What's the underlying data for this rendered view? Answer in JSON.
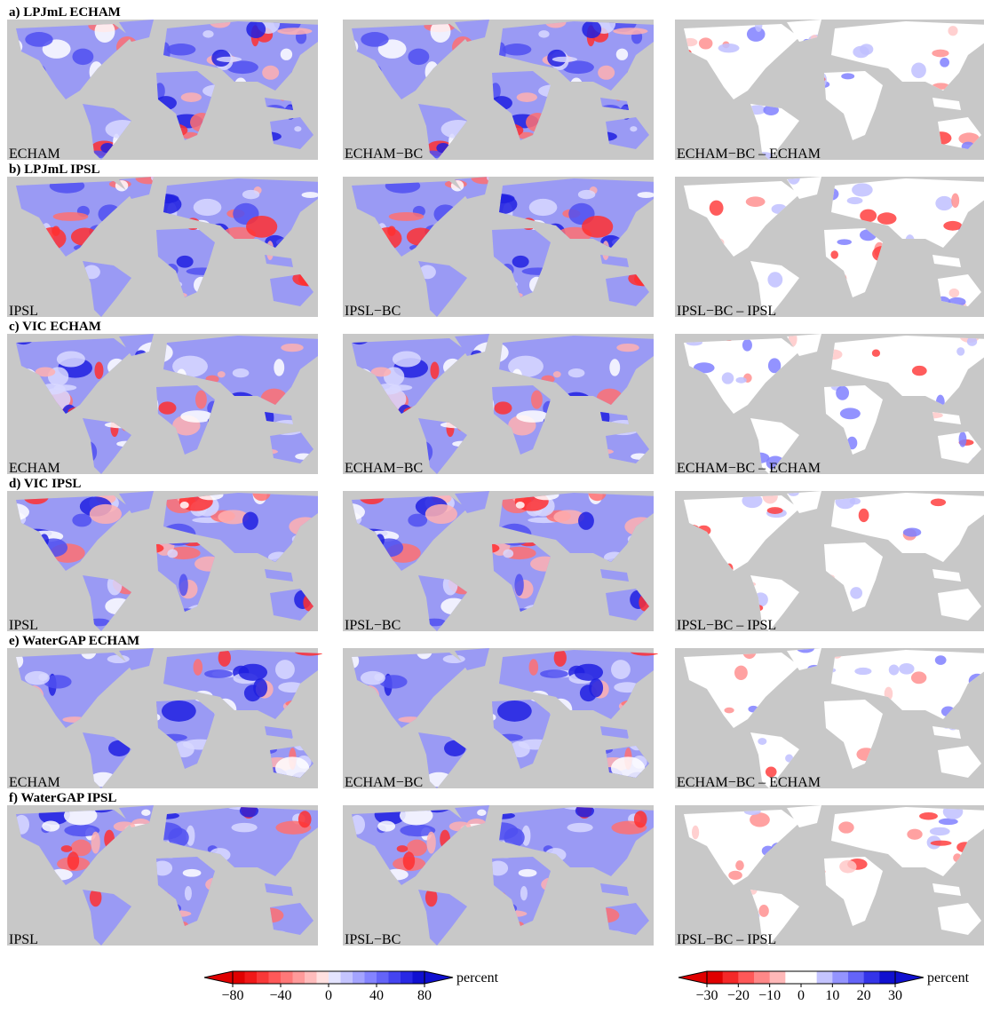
{
  "panels": [
    {
      "title": "a) LPJmL ECHAM",
      "labels": [
        "ECHAM",
        "ECHAM−BC",
        "ECHAM−BC – ECHAM"
      ]
    },
    {
      "title": "b) LPJmL IPSL",
      "labels": [
        "IPSL",
        "IPSL−BC",
        "IPSL−BC – IPSL"
      ]
    },
    {
      "title": "c) VIC ECHAM",
      "labels": [
        "ECHAM",
        "ECHAM−BC",
        "ECHAM−BC – ECHAM"
      ]
    },
    {
      "title": "d) VIC IPSL",
      "labels": [
        "IPSL",
        "IPSL−BC",
        "IPSL−BC – IPSL"
      ]
    },
    {
      "title": "e) WaterGAP ECHAM",
      "labels": [
        "ECHAM",
        "ECHAM−BC",
        "ECHAM−BC – ECHAM"
      ]
    },
    {
      "title": "f) WaterGAP IPSL",
      "labels": [
        "IPSL",
        "IPSL−BC",
        "IPSL−BC – IPSL"
      ]
    }
  ],
  "colorbars": [
    {
      "lim": [
        -80,
        80
      ],
      "label": "percent",
      "ticks": [
        {
          "value": -80,
          "label": "−80"
        },
        {
          "value": -40,
          "label": "−40"
        },
        0,
        40,
        80
      ],
      "colors": [
        "#e00000",
        "#f01818",
        "#f83838",
        "#ff5858",
        "#ff7878",
        "#ff9a9a",
        "#ffbcbc",
        "#ffe0e0",
        "#e4e4ff",
        "#c4c4ff",
        "#a4a4ff",
        "#8484ff",
        "#6464f8",
        "#4444f0",
        "#2828e4",
        "#1010d0"
      ]
    },
    {
      "lim": [
        -30,
        30
      ],
      "label": "percent",
      "ticks": [
        {
          "value": -30,
          "label": "−30"
        },
        {
          "value": -20,
          "label": "−20"
        },
        {
          "value": -10,
          "label": "−10"
        },
        0,
        10,
        20,
        30
      ],
      "colors": [
        "#e00000",
        "#f42828",
        "#ff5858",
        "#ff8888",
        "#ffb8b8",
        "#ffffff",
        "#ffffff",
        "#c4c4ff",
        "#9494ff",
        "#6464f8",
        "#3434e8",
        "#1010d0"
      ]
    }
  ]
}
